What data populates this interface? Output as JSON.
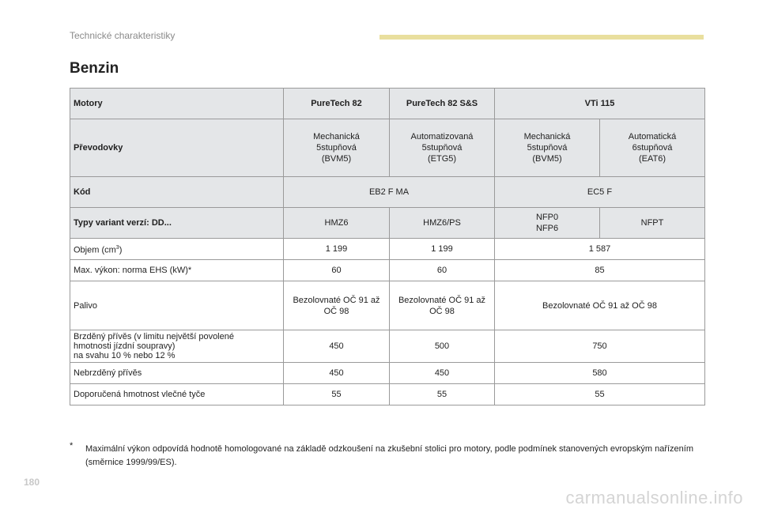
{
  "header": {
    "section": "Technické charakteristiky",
    "title": "Benzin"
  },
  "table": {
    "motory": {
      "label": "Motory",
      "cols": [
        "PureTech 82",
        "PureTech 82 S&S",
        "VTi 115"
      ]
    },
    "prevodovky": {
      "label": "Převodovky",
      "cols": [
        [
          "Mechanická",
          "5stupňová",
          "(BVM5)"
        ],
        [
          "Automatizovaná",
          "5stupňová",
          "(ETG5)"
        ],
        [
          "Mechanická",
          "5stupňová",
          "(BVM5)"
        ],
        [
          "Automatická",
          "6stupňová",
          "(EAT6)"
        ]
      ]
    },
    "kod": {
      "label": "Kód",
      "cols": [
        "EB2 F MA",
        "EC5 F"
      ]
    },
    "typy": {
      "label": "Typy variant verzí: DD...",
      "cols": [
        "HMZ6",
        "HMZ6/PS",
        [
          "NFP0",
          "NFP6"
        ],
        "NFPT"
      ]
    },
    "objem": {
      "label_pre": "Objem (cm",
      "label_sup": "3",
      "label_post": ")",
      "cols": [
        "1 199",
        "1 199",
        "1 587"
      ]
    },
    "vykon": {
      "label": "Max. výkon: norma EHS (kW)*",
      "cols": [
        "60",
        "60",
        "85"
      ]
    },
    "palivo": {
      "label": "Palivo",
      "cols": [
        [
          "Bezolovnaté OČ 91 až",
          "OČ 98"
        ],
        [
          "Bezolovnaté OČ 91 až",
          "OČ 98"
        ],
        "Bezolovnaté OČ 91 až OČ 98"
      ]
    },
    "brzdeny": {
      "label": [
        "Brzděný přívěs (v limitu největší povolené",
        "hmotnosti jízdní soupravy)",
        "na svahu 10 % nebo 12 %"
      ],
      "cols": [
        "450",
        "500",
        "750"
      ]
    },
    "nebrzdeny": {
      "label": "Nebrzděný přívěs",
      "cols": [
        "450",
        "450",
        "580"
      ]
    },
    "doporucena": {
      "label": "Doporučená hmotnost vlečné tyče",
      "cols": [
        "55",
        "55",
        "55"
      ]
    }
  },
  "footnote": {
    "marker": "*",
    "text": "Maximální výkon odpovídá hodnotě homologované na základě odzkoušení na zkušební stolici pro motory, podle podmínek stanovených evropským nařízením (směrnice 1999/99/ES)."
  },
  "page_number": "180",
  "watermark": "carmanualsonline.info"
}
